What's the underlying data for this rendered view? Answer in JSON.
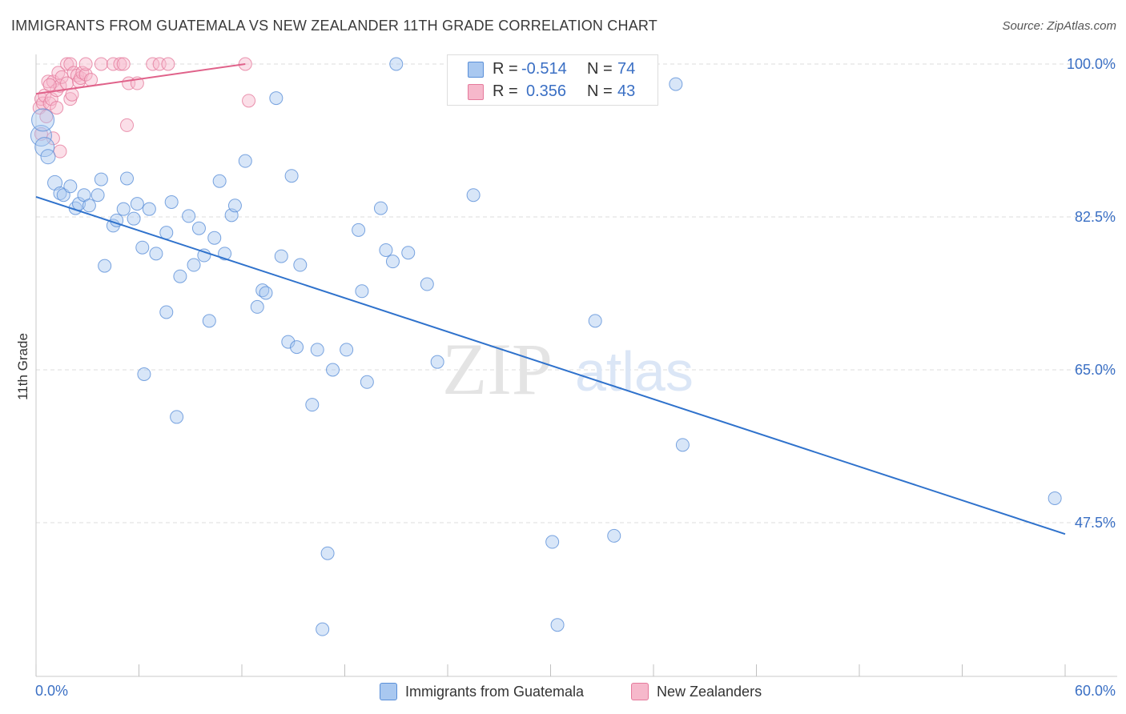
{
  "header": {
    "title": "IMMIGRANTS FROM GUATEMALA VS NEW ZEALANDER 11TH GRADE CORRELATION CHART",
    "source": "Source: ZipAtlas.com"
  },
  "legend": {
    "r_label": "R =",
    "n_label": "N =",
    "series": [
      {
        "name": "Immigrants from Guatemala",
        "r": "-0.514",
        "n": "74"
      },
      {
        "name": "New Zealanders",
        "r": "0.356",
        "n": "43"
      }
    ]
  },
  "watermark": {
    "zip": "ZIP",
    "atlas": "atlas"
  },
  "colors": {
    "blue_fill": "#a9c8f0",
    "blue_stroke": "#5a8fd8",
    "blue_line": "#2f72cc",
    "pink_fill": "#f6b8cb",
    "pink_stroke": "#e57a9c",
    "pink_line": "#e0628a",
    "axis_label": "#3a6fc4",
    "grid": "#dcdcdc"
  },
  "chart_data": {
    "type": "scatter",
    "title": "IMMIGRANTS FROM GUATEMALA VS NEW ZEALANDER 11TH GRADE CORRELATION CHART",
    "xlabel": "",
    "ylabel": "11th Grade",
    "xlim": [
      0,
      60
    ],
    "ylim": [
      32,
      102
    ],
    "x_tick_labels": [
      "0.0%",
      "60.0%"
    ],
    "y_ticks": [
      47.5,
      65.0,
      82.5,
      100.0
    ],
    "y_tick_labels": [
      "47.5%",
      "65.0%",
      "82.5%",
      "100.0%"
    ],
    "grid": true,
    "series": [
      {
        "name": "Immigrants from Guatemala",
        "color": "#a9c8f0",
        "trend": {
          "x": [
            0,
            60
          ],
          "y": [
            84.8,
            46.2
          ]
        },
        "points": [
          {
            "x": 0.3,
            "y": 91.8,
            "s": 13
          },
          {
            "x": 0.4,
            "y": 93.6,
            "s": 14
          },
          {
            "x": 0.5,
            "y": 90.5,
            "s": 12
          },
          {
            "x": 0.7,
            "y": 89.4,
            "s": 9
          },
          {
            "x": 1.1,
            "y": 86.4,
            "s": 9
          },
          {
            "x": 1.4,
            "y": 85.2,
            "s": 8
          },
          {
            "x": 1.6,
            "y": 85.0,
            "s": 8
          },
          {
            "x": 2.0,
            "y": 86.0,
            "s": 8
          },
          {
            "x": 2.3,
            "y": 83.5,
            "s": 8
          },
          {
            "x": 2.5,
            "y": 84.0,
            "s": 8
          },
          {
            "x": 2.8,
            "y": 85.0,
            "s": 8
          },
          {
            "x": 3.1,
            "y": 83.8,
            "s": 8
          },
          {
            "x": 3.6,
            "y": 85.0,
            "s": 8
          },
          {
            "x": 3.8,
            "y": 86.8,
            "s": 8
          },
          {
            "x": 4.5,
            "y": 81.5,
            "s": 8
          },
          {
            "x": 4.7,
            "y": 82.1,
            "s": 8
          },
          {
            "x": 5.1,
            "y": 83.4,
            "s": 8
          },
          {
            "x": 5.3,
            "y": 86.9,
            "s": 8
          },
          {
            "x": 5.7,
            "y": 82.3,
            "s": 8
          },
          {
            "x": 5.9,
            "y": 84.0,
            "s": 8
          },
          {
            "x": 6.2,
            "y": 79.0,
            "s": 8
          },
          {
            "x": 6.6,
            "y": 83.4,
            "s": 8
          },
          {
            "x": 7.0,
            "y": 78.3,
            "s": 8
          },
          {
            "x": 7.6,
            "y": 80.7,
            "s": 8
          },
          {
            "x": 7.9,
            "y": 84.2,
            "s": 8
          },
          {
            "x": 8.4,
            "y": 75.7,
            "s": 8
          },
          {
            "x": 8.9,
            "y": 82.6,
            "s": 8
          },
          {
            "x": 9.2,
            "y": 77.0,
            "s": 8
          },
          {
            "x": 9.5,
            "y": 81.2,
            "s": 8
          },
          {
            "x": 9.8,
            "y": 78.1,
            "s": 8
          },
          {
            "x": 10.4,
            "y": 80.1,
            "s": 8
          },
          {
            "x": 10.7,
            "y": 86.6,
            "s": 8
          },
          {
            "x": 11.4,
            "y": 82.7,
            "s": 8
          },
          {
            "x": 11.0,
            "y": 78.3,
            "s": 8
          },
          {
            "x": 11.6,
            "y": 83.8,
            "s": 8
          },
          {
            "x": 12.2,
            "y": 88.9,
            "s": 8
          },
          {
            "x": 12.9,
            "y": 72.2,
            "s": 8
          },
          {
            "x": 13.2,
            "y": 74.1,
            "s": 8
          },
          {
            "x": 13.4,
            "y": 73.8,
            "s": 8
          },
          {
            "x": 14.0,
            "y": 96.1,
            "s": 8
          },
          {
            "x": 14.3,
            "y": 78.0,
            "s": 8
          },
          {
            "x": 14.7,
            "y": 68.2,
            "s": 8
          },
          {
            "x": 14.9,
            "y": 87.2,
            "s": 8
          },
          {
            "x": 15.2,
            "y": 67.6,
            "s": 8
          },
          {
            "x": 15.4,
            "y": 77.0,
            "s": 8
          },
          {
            "x": 16.1,
            "y": 61.0,
            "s": 8
          },
          {
            "x": 16.4,
            "y": 67.3,
            "s": 8
          },
          {
            "x": 17.3,
            "y": 65.0,
            "s": 8
          },
          {
            "x": 18.1,
            "y": 67.3,
            "s": 8
          },
          {
            "x": 18.8,
            "y": 81.0,
            "s": 8
          },
          {
            "x": 19.0,
            "y": 74.0,
            "s": 8
          },
          {
            "x": 19.3,
            "y": 63.6,
            "s": 8
          },
          {
            "x": 20.1,
            "y": 83.5,
            "s": 8
          },
          {
            "x": 20.4,
            "y": 78.7,
            "s": 8
          },
          {
            "x": 20.8,
            "y": 77.4,
            "s": 8
          },
          {
            "x": 21.7,
            "y": 78.4,
            "s": 8
          },
          {
            "x": 22.8,
            "y": 74.8,
            "s": 8
          },
          {
            "x": 23.4,
            "y": 65.9,
            "s": 8
          },
          {
            "x": 25.5,
            "y": 85.0,
            "s": 8
          },
          {
            "x": 21.0,
            "y": 100.0,
            "s": 8
          },
          {
            "x": 32.6,
            "y": 70.6,
            "s": 8
          },
          {
            "x": 37.3,
            "y": 97.7,
            "s": 8
          },
          {
            "x": 37.7,
            "y": 56.4,
            "s": 8
          },
          {
            "x": 59.4,
            "y": 50.3,
            "s": 8
          },
          {
            "x": 30.1,
            "y": 45.3,
            "s": 8
          },
          {
            "x": 33.7,
            "y": 46.0,
            "s": 8
          },
          {
            "x": 17.0,
            "y": 44.0,
            "s": 8
          },
          {
            "x": 16.7,
            "y": 35.3,
            "s": 8
          },
          {
            "x": 30.4,
            "y": 35.8,
            "s": 8
          },
          {
            "x": 8.2,
            "y": 59.6,
            "s": 8
          },
          {
            "x": 6.3,
            "y": 64.5,
            "s": 8
          },
          {
            "x": 7.6,
            "y": 71.6,
            "s": 8
          },
          {
            "x": 10.1,
            "y": 70.6,
            "s": 8
          },
          {
            "x": 4.0,
            "y": 76.9,
            "s": 8
          }
        ]
      },
      {
        "name": "New Zealanders",
        "color": "#f6b8cb",
        "trend": {
          "x": [
            0,
            12.2
          ],
          "y": [
            96.6,
            100.0
          ]
        },
        "points": [
          {
            "x": 0.2,
            "y": 95.0,
            "s": 8
          },
          {
            "x": 0.3,
            "y": 96.0,
            "s": 8
          },
          {
            "x": 0.3,
            "y": 92.0,
            "s": 8
          },
          {
            "x": 0.4,
            "y": 95.5,
            "s": 8
          },
          {
            "x": 0.5,
            "y": 96.4,
            "s": 8
          },
          {
            "x": 0.6,
            "y": 94.0,
            "s": 8
          },
          {
            "x": 0.7,
            "y": 98.0,
            "s": 8
          },
          {
            "x": 0.8,
            "y": 95.5,
            "s": 8
          },
          {
            "x": 0.9,
            "y": 96.0,
            "s": 8
          },
          {
            "x": 1.0,
            "y": 98.0,
            "s": 8
          },
          {
            "x": 1.0,
            "y": 91.5,
            "s": 8
          },
          {
            "x": 1.2,
            "y": 97.0,
            "s": 8
          },
          {
            "x": 1.2,
            "y": 95.0,
            "s": 8
          },
          {
            "x": 1.3,
            "y": 99.0,
            "s": 8
          },
          {
            "x": 1.4,
            "y": 97.5,
            "s": 8
          },
          {
            "x": 1.5,
            "y": 98.5,
            "s": 8
          },
          {
            "x": 1.4,
            "y": 90.0,
            "s": 8
          },
          {
            "x": 1.8,
            "y": 97.8,
            "s": 8
          },
          {
            "x": 1.8,
            "y": 100.0,
            "s": 8
          },
          {
            "x": 2.0,
            "y": 100.0,
            "s": 8
          },
          {
            "x": 2.0,
            "y": 96.0,
            "s": 8
          },
          {
            "x": 2.2,
            "y": 99.0,
            "s": 8
          },
          {
            "x": 2.4,
            "y": 98.7,
            "s": 8
          },
          {
            "x": 2.5,
            "y": 98.0,
            "s": 8
          },
          {
            "x": 2.6,
            "y": 98.4,
            "s": 8
          },
          {
            "x": 2.7,
            "y": 99.0,
            "s": 8
          },
          {
            "x": 2.9,
            "y": 98.8,
            "s": 8
          },
          {
            "x": 3.2,
            "y": 98.2,
            "s": 8
          },
          {
            "x": 2.1,
            "y": 96.5,
            "s": 8
          },
          {
            "x": 2.9,
            "y": 100.0,
            "s": 8
          },
          {
            "x": 3.8,
            "y": 100.0,
            "s": 8
          },
          {
            "x": 4.5,
            "y": 100.0,
            "s": 8
          },
          {
            "x": 4.9,
            "y": 100.0,
            "s": 8
          },
          {
            "x": 5.1,
            "y": 100.0,
            "s": 8
          },
          {
            "x": 5.3,
            "y": 93.0,
            "s": 8
          },
          {
            "x": 5.4,
            "y": 97.8,
            "s": 8
          },
          {
            "x": 5.9,
            "y": 97.8,
            "s": 8
          },
          {
            "x": 6.8,
            "y": 100.0,
            "s": 8
          },
          {
            "x": 7.2,
            "y": 100.0,
            "s": 8
          },
          {
            "x": 7.7,
            "y": 100.0,
            "s": 8
          },
          {
            "x": 12.2,
            "y": 100.0,
            "s": 8
          },
          {
            "x": 12.4,
            "y": 95.8,
            "s": 8
          },
          {
            "x": 0.8,
            "y": 97.6,
            "s": 8
          }
        ]
      }
    ]
  }
}
